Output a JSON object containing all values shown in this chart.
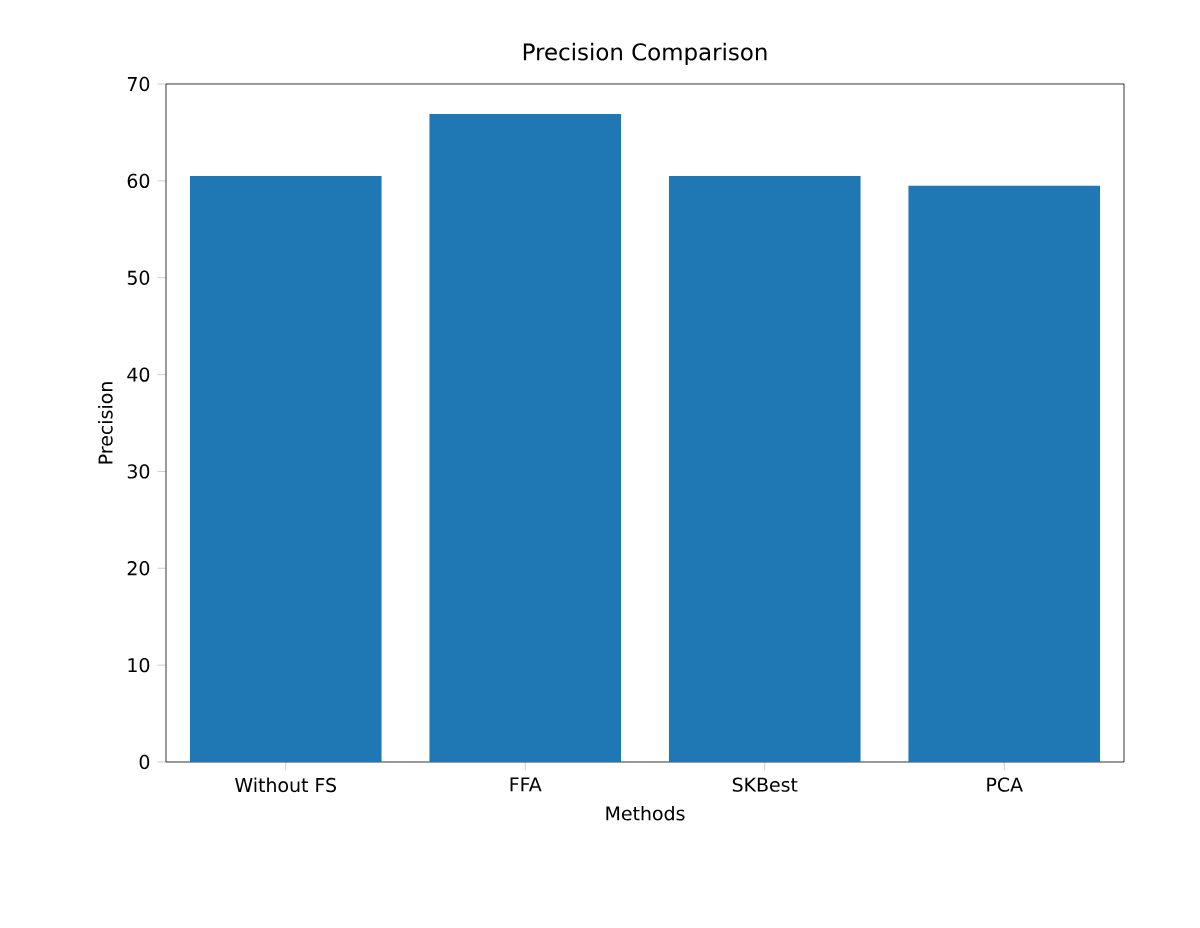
{
  "chart_data": {
    "type": "bar",
    "title": "Precision Comparison",
    "xlabel": "Methods",
    "ylabel": "Precision",
    "categories": [
      "Without FS",
      "FFA",
      "SKBest",
      "PCA"
    ],
    "values": [
      60.5,
      66.9,
      60.5,
      59.5
    ],
    "color": "#1f77b4",
    "ylim": [
      0,
      70
    ],
    "yticks": [
      0,
      10,
      20,
      30,
      40,
      50,
      60,
      70
    ],
    "grid": false
  }
}
